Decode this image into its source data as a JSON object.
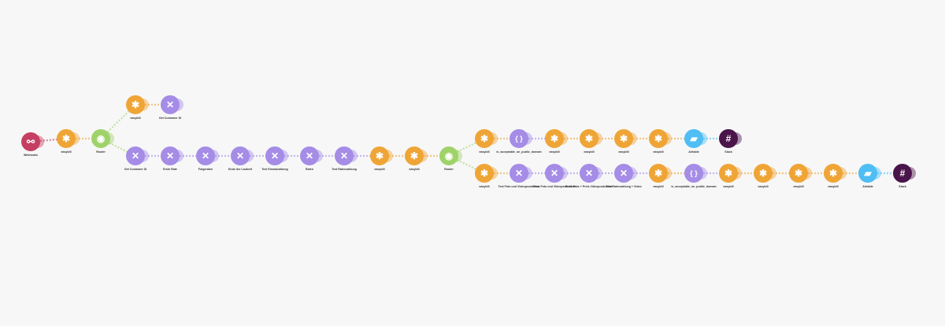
{
  "colors": {
    "easybill": "#efa536",
    "tools": "#a58ce6",
    "json": "#a58ce6",
    "router": "#9fd36a",
    "webhooks": "#c53f62",
    "airtable": "#4fbef4",
    "slack": "#4a154b"
  },
  "icons": {
    "easybill": "star-icon",
    "tools": "tools-icon",
    "json": "json-braces-icon",
    "router": "router-icon",
    "webhooks": "webhook-icon",
    "airtable": "airtable-icon",
    "slack": "slack-icon"
  },
  "nodes": [
    {
      "label": "Webhooks",
      "type": "webhooks"
    },
    {
      "label": "easybill",
      "type": "easybill"
    },
    {
      "label": "Router",
      "type": "router"
    },
    {
      "label": "easybill",
      "type": "easybill"
    },
    {
      "label": "Get Customer ID",
      "type": "tools"
    },
    {
      "label": "Get Customer ID",
      "type": "tools"
    },
    {
      "label": "Erste Rate",
      "type": "tools"
    },
    {
      "label": "Folgeraten",
      "type": "tools"
    },
    {
      "label": "Ende der Laufzeit",
      "type": "tools"
    },
    {
      "label": "Text Einmalzahlung",
      "type": "tools"
    },
    {
      "label": "Raten",
      "type": "tools"
    },
    {
      "label": "Text Ratenzahlung",
      "type": "tools"
    },
    {
      "label": "easybill",
      "type": "easybill"
    },
    {
      "label": "easybill",
      "type": "easybill"
    },
    {
      "label": "Router",
      "type": "router"
    },
    {
      "label": "easybill",
      "type": "easybill"
    },
    {
      "label": "is_acceptable_on_public_domain",
      "type": "json"
    },
    {
      "label": "easybill",
      "type": "easybill"
    },
    {
      "label": "easybill",
      "type": "easybill"
    },
    {
      "label": "easybill",
      "type": "easybill"
    },
    {
      "label": "easybill",
      "type": "easybill"
    },
    {
      "label": "Airtable",
      "type": "airtable"
    },
    {
      "label": "Slack",
      "type": "slack"
    },
    {
      "label": "easybill",
      "type": "easybill"
    },
    {
      "label": "Text Foto und Videoproduktion",
      "type": "tools"
    },
    {
      "label": "Preis Foto und Videoproduktion",
      "type": "tools"
    },
    {
      "label": "Erste Rate + Preis Videoproduktion",
      "type": "tools"
    },
    {
      "label": "Text Ratenzahlung + Video",
      "type": "tools"
    },
    {
      "label": "easybill",
      "type": "easybill"
    },
    {
      "label": "is_acceptable_on_public_domain",
      "type": "json"
    },
    {
      "label": "easybill",
      "type": "easybill"
    },
    {
      "label": "easybill",
      "type": "easybill"
    },
    {
      "label": "easybill",
      "type": "easybill"
    },
    {
      "label": "easybill",
      "type": "easybill"
    },
    {
      "label": "Airtable",
      "type": "airtable"
    },
    {
      "label": "Slack",
      "type": "slack"
    }
  ]
}
